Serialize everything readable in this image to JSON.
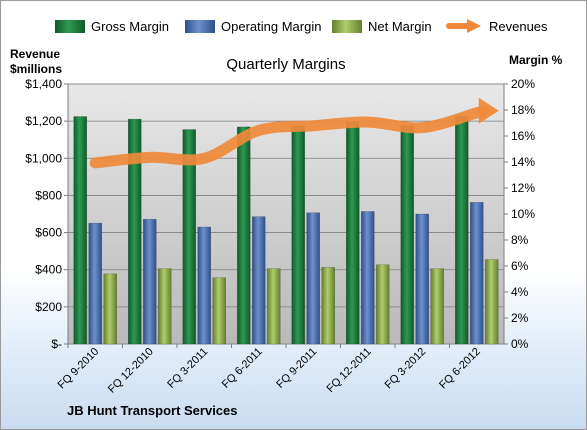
{
  "chart_data": {
    "type": "bar",
    "title": "Quarterly Margins",
    "footer": "JB Hunt Transport Services",
    "categories": [
      "FQ 9-2010",
      "FQ 12-2010",
      "FQ 3-2011",
      "FQ 6-2011",
      "FQ 9-2011",
      "FQ 12-2011",
      "FQ 3-2012",
      "FQ 6-2012"
    ],
    "series": [
      {
        "name": "Gross Margin",
        "type": "bar",
        "axis": "right",
        "color": "#1e7a3c",
        "values": [
          17.5,
          17.3,
          16.5,
          16.7,
          16.8,
          17.1,
          16.8,
          17.5
        ]
      },
      {
        "name": "Operating Margin",
        "type": "bar",
        "axis": "right",
        "color": "#4a6fb0",
        "values": [
          9.3,
          9.6,
          9.0,
          9.8,
          10.1,
          10.2,
          10.0,
          10.9
        ]
      },
      {
        "name": "Net Margin",
        "type": "bar",
        "axis": "right",
        "color": "#8caf4a",
        "values": [
          5.4,
          5.8,
          5.1,
          5.8,
          5.9,
          6.1,
          5.8,
          6.5
        ]
      },
      {
        "name": "Revenues",
        "type": "line",
        "axis": "left",
        "color": "#f0893a",
        "values": [
          975,
          1005,
          1000,
          1150,
          1175,
          1195,
          1165,
          1245
        ]
      }
    ],
    "y_left": {
      "label_line1": "Revenue",
      "label_line2": "$millions",
      "min": 0,
      "max": 1400,
      "ticks": [
        "$-",
        "$200",
        "$400",
        "$600",
        "$800",
        "$1,000",
        "$1,200",
        "$1,400"
      ]
    },
    "y_right": {
      "label": "Margin %",
      "min": 0,
      "max": 20,
      "ticks": [
        "0%",
        "2%",
        "4%",
        "6%",
        "8%",
        "10%",
        "12%",
        "14%",
        "16%",
        "18%",
        "20%"
      ]
    },
    "grid": true,
    "legend_position": "top"
  }
}
